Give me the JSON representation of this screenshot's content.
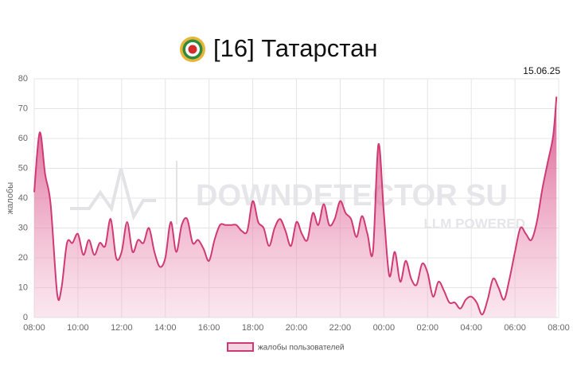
{
  "chart_data": {
    "type": "area",
    "title": "[16] Татарстан",
    "date_label": "15.06.25",
    "y_label": "жалобы",
    "watermark": [
      "DOWNDETECTOR SU",
      "LLM POWERED"
    ],
    "series": [
      {
        "name": "жалобы пользователей",
        "color": "#d03a74",
        "x": [
          0,
          0.25,
          0.5,
          0.75,
          1.05,
          1.25,
          1.5,
          1.75,
          2,
          2.25,
          2.5,
          2.75,
          3,
          3.25,
          3.5,
          3.75,
          4,
          4.25,
          4.5,
          4.75,
          5,
          5.25,
          5.5,
          5.75,
          6,
          6.25,
          6.5,
          6.75,
          7,
          7.25,
          7.5,
          7.75,
          8,
          8.25,
          8.5,
          8.75,
          9,
          9.25,
          9.5,
          9.75,
          10,
          10.25,
          10.5,
          10.75,
          11,
          11.25,
          11.5,
          11.75,
          12,
          12.25,
          12.5,
          12.75,
          13,
          13.25,
          13.5,
          13.75,
          14,
          14.25,
          14.5,
          14.75,
          15,
          15.25,
          15.5,
          15.75,
          16,
          16.25,
          16.5,
          16.75,
          17,
          17.25,
          17.5,
          17.75,
          18,
          18.25,
          18.5,
          18.75,
          19,
          19.25,
          19.5,
          19.75,
          20,
          20.25,
          20.5,
          20.75,
          21,
          21.25,
          21.5,
          21.75,
          22,
          22.25,
          22.5,
          22.75,
          23,
          23.25,
          23.5,
          23.75,
          23.9
        ],
        "values": [
          42,
          62,
          48,
          38,
          8,
          10,
          25,
          25,
          28,
          21,
          26,
          21,
          25,
          24,
          33,
          20,
          22,
          32,
          22,
          26,
          25,
          30,
          22,
          17,
          20,
          32,
          22,
          31,
          33,
          25,
          26,
          23,
          19,
          26,
          31,
          31,
          31,
          31,
          29,
          29,
          39,
          32,
          30,
          24,
          30,
          33,
          29,
          24,
          32,
          28,
          26,
          35,
          31,
          38,
          31,
          33,
          39,
          35,
          33,
          27,
          34,
          28,
          22,
          58,
          35,
          14,
          22,
          12,
          19,
          13,
          11,
          18,
          15,
          7,
          12,
          9,
          5,
          5,
          3,
          6,
          7,
          5,
          1,
          6,
          13,
          10,
          6,
          13,
          22,
          30,
          28,
          26,
          32,
          43,
          52,
          61,
          74
        ]
      }
    ],
    "xlim": [
      0,
      24
    ],
    "xticks": [
      {
        "value": 0,
        "label": "08:00"
      },
      {
        "value": 2,
        "label": "10:00"
      },
      {
        "value": 4,
        "label": "12:00"
      },
      {
        "value": 6,
        "label": "14:00"
      },
      {
        "value": 8,
        "label": "16:00"
      },
      {
        "value": 10,
        "label": "18:00"
      },
      {
        "value": 12,
        "label": "20:00"
      },
      {
        "value": 14,
        "label": "22:00"
      },
      {
        "value": 16,
        "label": "00:00"
      },
      {
        "value": 18,
        "label": "02:00"
      },
      {
        "value": 20,
        "label": "04:00"
      },
      {
        "value": 22,
        "label": "06:00"
      },
      {
        "value": 24,
        "label": "08:00"
      }
    ],
    "ylim": [
      0,
      80
    ],
    "yticks": [
      0,
      10,
      20,
      30,
      40,
      50,
      60,
      70,
      80
    ],
    "grid": true,
    "legend": "bottom"
  }
}
